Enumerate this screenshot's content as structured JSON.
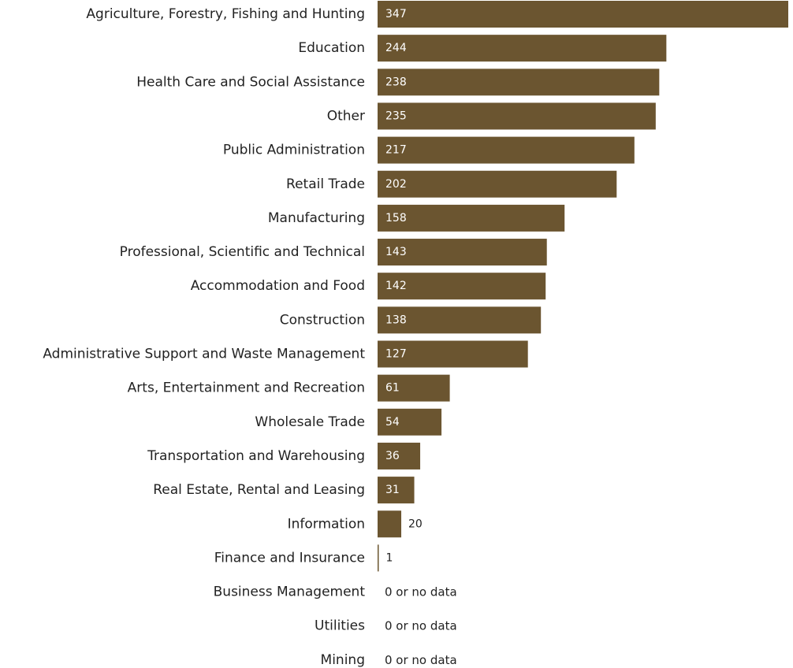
{
  "colors": {
    "bar": "#6b5530",
    "value_inside": "#ffffff",
    "value_outside": "#222222",
    "category_text": "#222222"
  },
  "chart_data": {
    "type": "bar",
    "orientation": "horizontal",
    "categories": [
      "Agriculture, Forestry, Fishing and Hunting",
      "Education",
      "Health Care and Social Assistance",
      "Other",
      "Public Administration",
      "Retail Trade",
      "Manufacturing",
      "Professional, Scientific and Technical",
      "Accommodation and Food",
      "Construction",
      "Administrative Support and Waste Management",
      "Arts, Entertainment and Recreation",
      "Wholesale Trade",
      "Transportation and Warehousing",
      "Real Estate, Rental and Leasing",
      "Information",
      "Finance and Insurance",
      "Business Management",
      "Utilities",
      "Mining"
    ],
    "values": [
      347,
      244,
      238,
      235,
      217,
      202,
      158,
      143,
      142,
      138,
      127,
      61,
      54,
      36,
      31,
      20,
      1,
      null,
      null,
      null
    ],
    "value_labels": [
      "347",
      "244",
      "238",
      "235",
      "217",
      "202",
      "158",
      "143",
      "142",
      "138",
      "127",
      "61",
      "54",
      "36",
      "31",
      "20",
      "1",
      "0 or no data",
      "0 or no data",
      "0 or no data"
    ],
    "xlim": [
      0,
      347
    ],
    "grid": false,
    "legend": "none",
    "title": "",
    "xlabel": "",
    "ylabel": ""
  }
}
